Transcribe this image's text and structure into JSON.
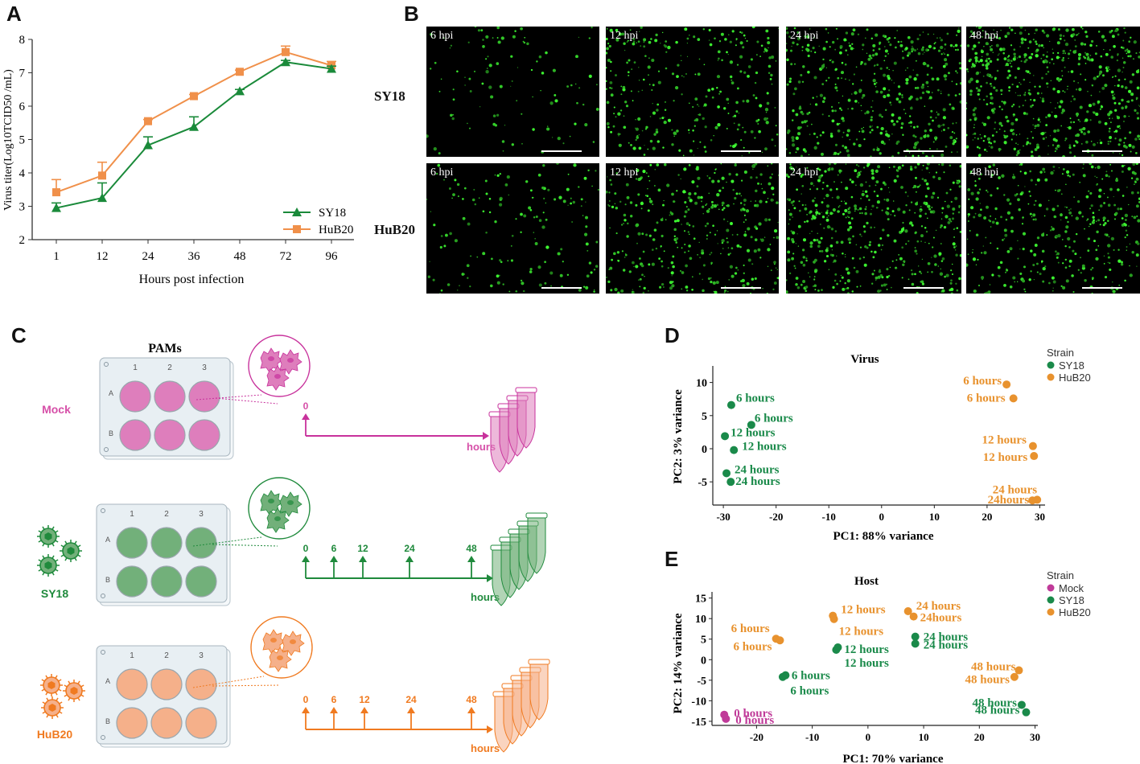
{
  "panels": {
    "a": "A",
    "b": "B",
    "c": "C",
    "d": "D",
    "e": "E"
  },
  "chart_data": [
    {
      "panel": "A",
      "type": "line",
      "xlabel": "Hours post infection",
      "ylabel": "Virus titer(Log10TCID50 /mL)",
      "categories": [
        "1",
        "12",
        "24",
        "36",
        "48",
        "72",
        "96"
      ],
      "ylim": [
        2,
        8
      ],
      "yticks": [
        2,
        3,
        4,
        5,
        6,
        7,
        8
      ],
      "legend_position": "bottom-right",
      "series": [
        {
          "name": "SY18",
          "color": "#1a8a3a",
          "marker": "triangle",
          "values": [
            2.95,
            3.25,
            4.83,
            5.38,
            6.45,
            7.32,
            7.12
          ],
          "error": [
            0.15,
            0.45,
            0.25,
            0.3,
            0.05,
            0.05,
            0.08
          ]
        },
        {
          "name": "HuB20",
          "color": "#f0904a",
          "marker": "square",
          "values": [
            3.42,
            3.92,
            5.55,
            6.3,
            7.03,
            7.62,
            7.22
          ],
          "error": [
            0.38,
            0.4,
            0.05,
            0.05,
            0.05,
            0.18,
            0.12
          ]
        }
      ]
    },
    {
      "panel": "D",
      "type": "scatter",
      "title": "Virus",
      "xlabel": "PC1: 88% variance",
      "ylabel": "PC2: 3% variance",
      "xlim": [
        -32,
        31
      ],
      "ylim": [
        -8.5,
        12.5
      ],
      "xticks": [
        -30,
        -20,
        -10,
        0,
        10,
        20,
        30
      ],
      "yticks": [
        10,
        5,
        0,
        -5
      ],
      "legend_title": "Strain",
      "legend_position": "top-right",
      "series": [
        {
          "name": "SY18",
          "color": "#1a8a4a",
          "points": [
            {
              "x": -28.5,
              "y": 6.6,
              "label": "6 hours"
            },
            {
              "x": -24.7,
              "y": 3.6,
              "label": "6 hours"
            },
            {
              "x": -29.7,
              "y": 1.9,
              "label": "12 hours"
            },
            {
              "x": -28.0,
              "y": -0.2,
              "label": "12 hours"
            },
            {
              "x": -29.4,
              "y": -3.7,
              "label": "24 hours"
            },
            {
              "x": -28.6,
              "y": -5.0,
              "label": "24 hours"
            }
          ]
        },
        {
          "name": "HuB20",
          "color": "#e8922e",
          "points": [
            {
              "x": 23.7,
              "y": 9.7,
              "label": "6 hours"
            },
            {
              "x": 25.0,
              "y": 7.6,
              "label": "6 hours"
            },
            {
              "x": 28.7,
              "y": 0.4,
              "label": "12 hours"
            },
            {
              "x": 28.9,
              "y": -1.1,
              "label": "12 hours"
            },
            {
              "x": 28.6,
              "y": -7.8,
              "label": "24hours"
            },
            {
              "x": 29.5,
              "y": -7.7,
              "label": "24 hours"
            }
          ]
        }
      ]
    },
    {
      "panel": "E",
      "type": "scatter",
      "title": "Host",
      "xlabel": "PC1: 70% variance",
      "ylabel": "PC2: 14% variance",
      "xlim": [
        -28,
        30.5
      ],
      "ylim": [
        -16,
        16.5
      ],
      "xticks": [
        -20,
        -10,
        0,
        10,
        20,
        30
      ],
      "yticks": [
        15,
        10,
        5,
        0,
        -5,
        -10,
        -15
      ],
      "legend_title": "Strain",
      "legend_position": "top-right",
      "series": [
        {
          "name": "Mock",
          "color": "#c03a99",
          "points": [
            {
              "x": -25.8,
              "y": -13.4,
              "label": "0 hours"
            },
            {
              "x": -25.5,
              "y": -14.4,
              "label": "0 hours"
            }
          ]
        },
        {
          "name": "SY18",
          "color": "#1a8a4a",
          "points": [
            {
              "x": -15.3,
              "y": -4.2,
              "label": "6 hours"
            },
            {
              "x": -14.8,
              "y": -3.8,
              "label": "6 hours"
            },
            {
              "x": -5.7,
              "y": 2.4,
              "label": "12 hours"
            },
            {
              "x": -5.4,
              "y": 3.0,
              "label": "12 hours"
            },
            {
              "x": 8.5,
              "y": 5.6,
              "label": "24 hours"
            },
            {
              "x": 8.5,
              "y": 3.9,
              "label": "24 hours"
            },
            {
              "x": 27.6,
              "y": -11.0,
              "label": "48 hours"
            },
            {
              "x": 28.4,
              "y": -12.8,
              "label": "48 hours"
            }
          ]
        },
        {
          "name": "HuB20",
          "color": "#e8922e",
          "points": [
            {
              "x": -16.5,
              "y": 5.1,
              "label": "6 hours"
            },
            {
              "x": -15.8,
              "y": 4.7,
              "label": "6 hours"
            },
            {
              "x": -6.3,
              "y": 10.7,
              "label": "12 hours"
            },
            {
              "x": -6.1,
              "y": 9.9,
              "label": "12 hours"
            },
            {
              "x": 7.2,
              "y": 11.8,
              "label": "24 hours"
            },
            {
              "x": 8.2,
              "y": 10.5,
              "label": "24hours"
            },
            {
              "x": 27.1,
              "y": -2.6,
              "label": "48 hours"
            },
            {
              "x": 26.3,
              "y": -4.2,
              "label": "48 hours"
            }
          ]
        }
      ]
    }
  ],
  "microscopy": {
    "rows": [
      "SY18",
      "HuB20"
    ],
    "timepoints": [
      "6 hpi",
      "12 hpi",
      "24 hpi",
      "48 hpi"
    ],
    "density": [
      [
        0.15,
        0.45,
        0.7,
        0.9
      ],
      [
        0.22,
        0.55,
        0.75,
        0.55
      ]
    ]
  },
  "schematic": {
    "plate_title": "PAMs",
    "col_labels": [
      "1",
      "2",
      "3"
    ],
    "row_labels": [
      "A",
      "B"
    ],
    "groups": [
      {
        "name": "Mock",
        "color": "#d64fa8",
        "well": "#de7ebc",
        "line": "#c8329c",
        "ticks": [
          "0"
        ],
        "axis_label": "hours"
      },
      {
        "name": "SY18",
        "color": "#1f8a3c",
        "well": "#72b07a",
        "line": "#1f8a3c",
        "ticks": [
          "0",
          "6",
          "12",
          "24",
          "48"
        ],
        "axis_label": "hours"
      },
      {
        "name": "HuB20",
        "color": "#f07a20",
        "well": "#f5b08a",
        "line": "#f07a20",
        "ticks": [
          "0",
          "6",
          "12",
          "24",
          "48"
        ],
        "axis_label": "hours"
      }
    ]
  }
}
